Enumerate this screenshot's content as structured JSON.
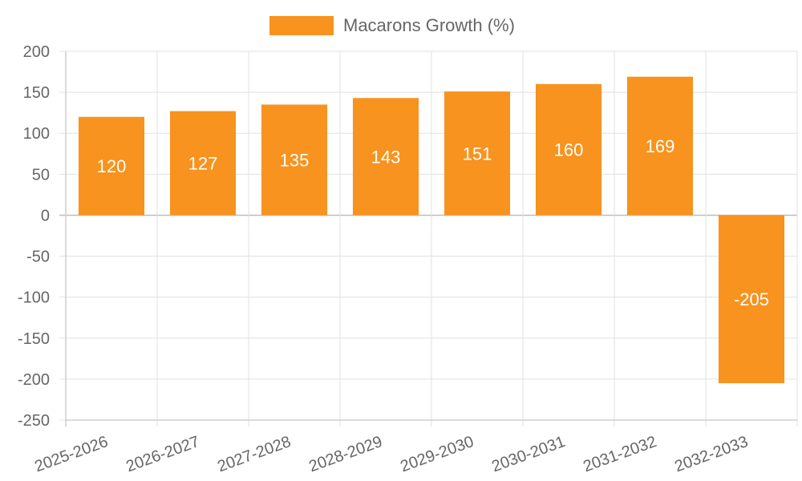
{
  "chart_data": {
    "type": "bar",
    "title": "",
    "xlabel": "",
    "ylabel": "",
    "categories": [
      "2025-2026",
      "2026-2027",
      "2027-2028",
      "2028-2029",
      "2029-2030",
      "2030-2031",
      "2031-2032",
      "2032-2033"
    ],
    "series": [
      {
        "name": "Macarons Growth (%)",
        "values": [
          120,
          127,
          135,
          143,
          151,
          160,
          169,
          -205
        ],
        "color": "#f7931e"
      }
    ],
    "ylim": [
      -250,
      200
    ],
    "yticks": [
      200,
      150,
      100,
      50,
      0,
      -50,
      -100,
      -150,
      -200,
      -250
    ],
    "grid": true,
    "legend_position": "top-center",
    "data_labels": true
  }
}
